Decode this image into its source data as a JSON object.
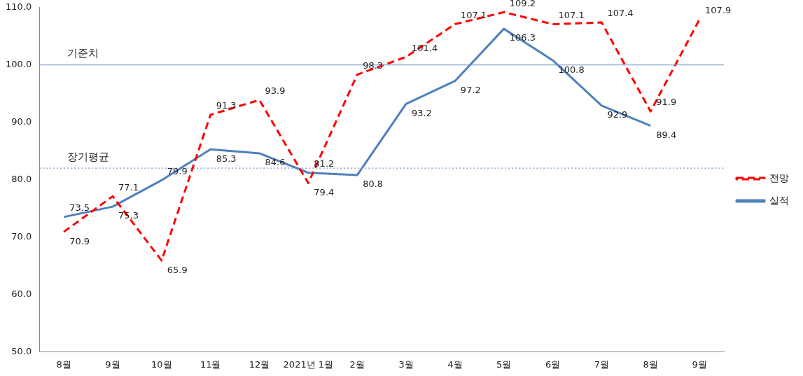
{
  "chart_data": {
    "type": "line",
    "categories": [
      "8월",
      "9월",
      "10월",
      "11월",
      "12월",
      "2021년 1월",
      "2월",
      "3월",
      "4월",
      "5월",
      "6월",
      "7월",
      "8월",
      "9월"
    ],
    "series": [
      {
        "name": "전망",
        "color": "#ff0000",
        "line_style": "dashed",
        "values": [
          70.9,
          77.1,
          65.9,
          91.3,
          93.9,
          79.4,
          98.3,
          101.4,
          107.1,
          109.2,
          107.1,
          107.4,
          91.9,
          107.9
        ]
      },
      {
        "name": "실적",
        "color": "#4f81bd",
        "line_style": "solid",
        "values": [
          73.5,
          75.3,
          79.9,
          85.3,
          84.6,
          81.2,
          80.8,
          93.2,
          97.2,
          106.3,
          100.8,
          92.9,
          89.4,
          null
        ]
      }
    ],
    "ylim": [
      50,
      110
    ],
    "yticks": [
      {
        "value": 50,
        "label": "50.0"
      },
      {
        "value": 60,
        "label": "60.0"
      },
      {
        "value": 70,
        "label": "70.0"
      },
      {
        "value": 80,
        "label": "80.0"
      },
      {
        "value": 90,
        "label": "90.0"
      },
      {
        "value": 100,
        "label": "100.0"
      },
      {
        "value": 110,
        "label": "110.0"
      }
    ],
    "ref_lines": [
      {
        "axis": "y",
        "value": 100,
        "label": "기준치",
        "color": "#6f94c8",
        "line_style": "solid"
      },
      {
        "axis": "y",
        "value": 82,
        "label": "장기평균",
        "color": "#6f94c8",
        "line_style": "dotted"
      }
    ],
    "data_labels": true,
    "grid": false,
    "legend": "right",
    "marker": "none"
  }
}
